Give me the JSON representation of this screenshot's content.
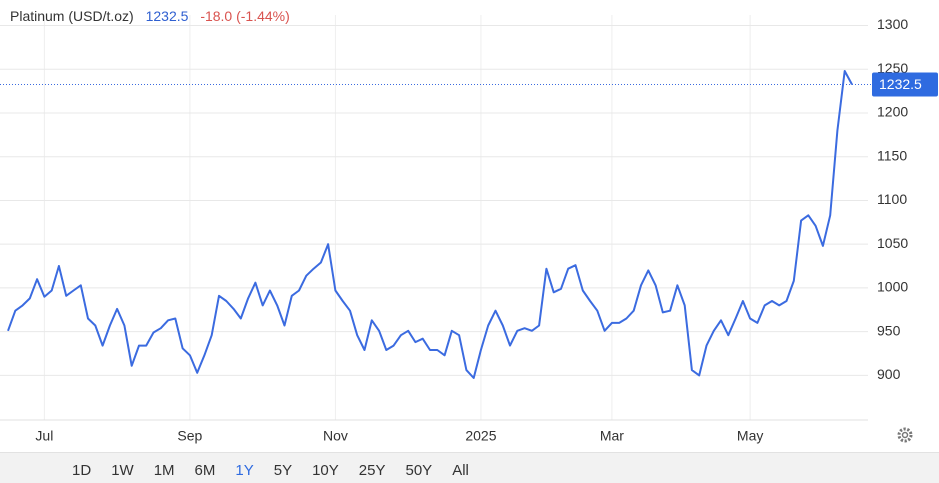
{
  "chart_data": {
    "type": "line",
    "title": "Platinum (USD/t.oz)",
    "change": "-18.0 (-1.44%)",
    "categories": [
      null,
      null,
      null,
      null,
      null,
      "Jul",
      null,
      null,
      null,
      null,
      null,
      null,
      null,
      null,
      null,
      null,
      null,
      null,
      null,
      null,
      null,
      null,
      null,
      null,
      null,
      "Sep",
      null,
      null,
      null,
      null,
      null,
      null,
      null,
      null,
      null,
      null,
      null,
      null,
      null,
      null,
      null,
      null,
      null,
      null,
      null,
      "Nov",
      null,
      null,
      null,
      null,
      null,
      null,
      null,
      null,
      null,
      null,
      null,
      null,
      null,
      null,
      null,
      null,
      null,
      null,
      null,
      "2025",
      null,
      null,
      null,
      null,
      null,
      null,
      null,
      null,
      null,
      null,
      null,
      null,
      null,
      null,
      null,
      null,
      null,
      "Mar",
      null,
      null,
      null,
      null,
      null,
      null,
      null,
      null,
      null,
      null,
      null,
      null,
      null,
      null,
      null,
      null,
      null,
      null,
      "May",
      null,
      null,
      null,
      null,
      null,
      null,
      null,
      null,
      null,
      null,
      null,
      null,
      null,
      null
    ],
    "values": [
      951,
      974,
      980,
      988,
      1010,
      990,
      997,
      1025,
      991,
      997,
      1003,
      965,
      957,
      934,
      957,
      976,
      957,
      911,
      934,
      934,
      949,
      954,
      963,
      965,
      931,
      923,
      903,
      923,
      946,
      991,
      985,
      976,
      965,
      988,
      1006,
      980,
      997,
      980,
      957,
      991,
      997,
      1014,
      1022,
      1029,
      1050,
      997,
      985,
      974,
      946,
      929,
      963,
      951,
      929,
      934,
      946,
      951,
      938,
      942,
      929,
      929,
      923,
      951,
      946,
      906,
      897,
      929,
      957,
      974,
      957,
      934,
      951,
      954,
      951,
      957,
      1022,
      995,
      999,
      1022,
      1026,
      997,
      985,
      974,
      951,
      960,
      960,
      965,
      974,
      1003,
      1020,
      1003,
      972,
      974,
      1003,
      980,
      906,
      900,
      934,
      951,
      963,
      946,
      965,
      985,
      965,
      960,
      980,
      985,
      980,
      985,
      1008,
      1077,
      1083,
      1071,
      1048,
      1083,
      1180,
      1248,
      1232.5
    ],
    "color": "#3b6be0",
    "ylim": [
      849,
      1312
    ],
    "yticks": [
      900,
      950,
      1000,
      1050,
      1100,
      1150,
      1200,
      1250,
      1300
    ],
    "grid": true,
    "ranges": [
      "1D",
      "1W",
      "1M",
      "6M",
      "1Y",
      "5Y",
      "10Y",
      "25Y",
      "50Y",
      "All"
    ],
    "active_range": "1Y"
  }
}
